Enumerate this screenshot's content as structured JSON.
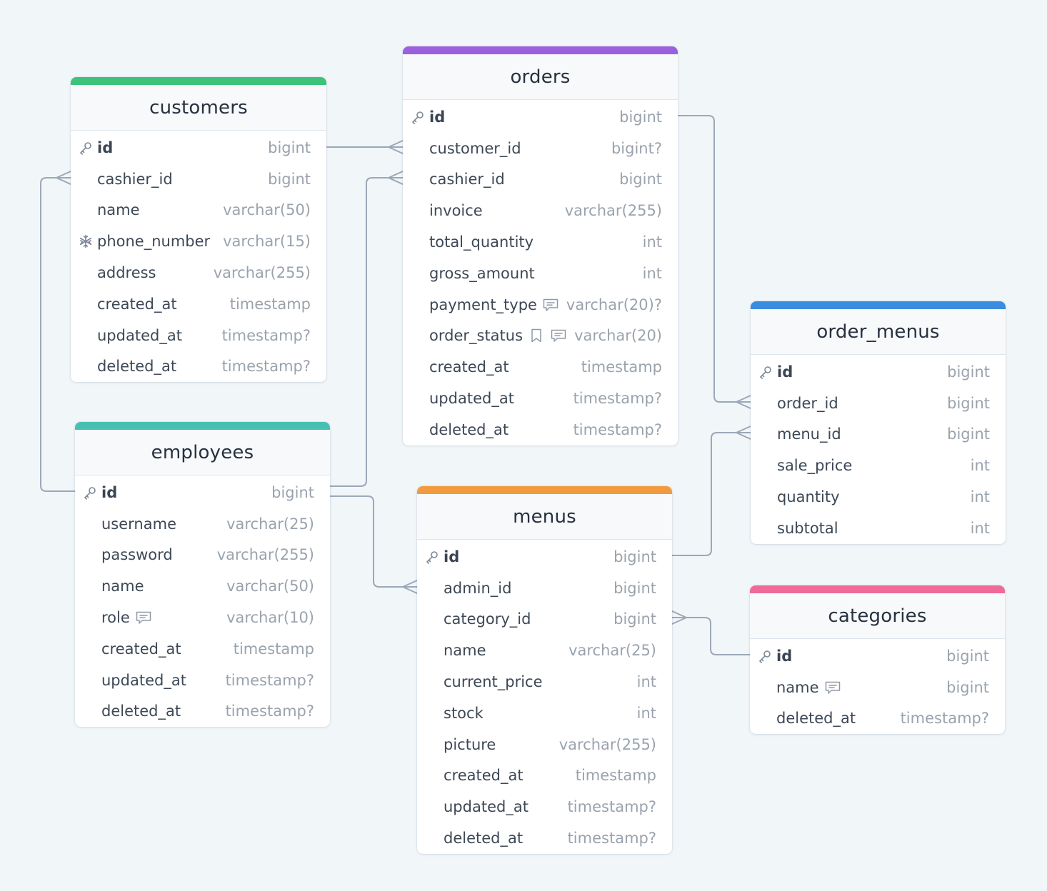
{
  "colors": {
    "background": "#f1f6f9",
    "connector": "#9ba8b8",
    "customers": "#3cc27a",
    "orders": "#9a60dd",
    "employees": "#48bfb3",
    "menus": "#f39a40",
    "order_menus": "#3a8ce0",
    "categories": "#ef6a96"
  },
  "tables": {
    "customers": {
      "title": "customers",
      "fields": [
        {
          "name": "id",
          "type": "bigint",
          "icon": "key-icon",
          "pk": true
        },
        {
          "name": "cashier_id",
          "type": "bigint"
        },
        {
          "name": "name",
          "type": "varchar(50)"
        },
        {
          "name": "phone_number",
          "type": "varchar(15)",
          "icon": "snowflake-icon"
        },
        {
          "name": "address",
          "type": "varchar(255)"
        },
        {
          "name": "created_at",
          "type": "timestamp"
        },
        {
          "name": "updated_at",
          "type": "timestamp?"
        },
        {
          "name": "deleted_at",
          "type": "timestamp?"
        }
      ]
    },
    "orders": {
      "title": "orders",
      "fields": [
        {
          "name": "id",
          "type": "bigint",
          "icon": "key-icon",
          "pk": true
        },
        {
          "name": "customer_id",
          "type": "bigint?"
        },
        {
          "name": "cashier_id",
          "type": "bigint"
        },
        {
          "name": "invoice",
          "type": "varchar(255)"
        },
        {
          "name": "total_quantity",
          "type": "int"
        },
        {
          "name": "gross_amount",
          "type": "int"
        },
        {
          "name": "payment_type",
          "type": "varchar(20)?",
          "notes": [
            "comment-icon"
          ]
        },
        {
          "name": "order_status",
          "type": "varchar(20)",
          "notes": [
            "bookmark-icon",
            "comment-icon"
          ]
        },
        {
          "name": "created_at",
          "type": "timestamp"
        },
        {
          "name": "updated_at",
          "type": "timestamp?"
        },
        {
          "name": "deleted_at",
          "type": "timestamp?"
        }
      ]
    },
    "employees": {
      "title": "employees",
      "fields": [
        {
          "name": "id",
          "type": "bigint",
          "icon": "key-icon",
          "pk": true
        },
        {
          "name": "username",
          "type": "varchar(25)"
        },
        {
          "name": "password",
          "type": "varchar(255)"
        },
        {
          "name": "name",
          "type": "varchar(50)"
        },
        {
          "name": "role",
          "type": "varchar(10)",
          "notes": [
            "comment-icon"
          ]
        },
        {
          "name": "created_at",
          "type": "timestamp"
        },
        {
          "name": "updated_at",
          "type": "timestamp?"
        },
        {
          "name": "deleted_at",
          "type": "timestamp?"
        }
      ]
    },
    "menus": {
      "title": "menus",
      "fields": [
        {
          "name": "id",
          "type": "bigint",
          "icon": "key-icon",
          "pk": true
        },
        {
          "name": "admin_id",
          "type": "bigint"
        },
        {
          "name": "category_id",
          "type": "bigint"
        },
        {
          "name": "name",
          "type": "varchar(25)"
        },
        {
          "name": "current_price",
          "type": "int"
        },
        {
          "name": "stock",
          "type": "int"
        },
        {
          "name": "picture",
          "type": "varchar(255)"
        },
        {
          "name": "created_at",
          "type": "timestamp"
        },
        {
          "name": "updated_at",
          "type": "timestamp?"
        },
        {
          "name": "deleted_at",
          "type": "timestamp?"
        }
      ]
    },
    "order_menus": {
      "title": "order_menus",
      "fields": [
        {
          "name": "id",
          "type": "bigint",
          "icon": "key-icon",
          "pk": true
        },
        {
          "name": "order_id",
          "type": "bigint"
        },
        {
          "name": "menu_id",
          "type": "bigint"
        },
        {
          "name": "sale_price",
          "type": "int"
        },
        {
          "name": "quantity",
          "type": "int"
        },
        {
          "name": "subtotal",
          "type": "int"
        }
      ]
    },
    "categories": {
      "title": "categories",
      "fields": [
        {
          "name": "id",
          "type": "bigint",
          "icon": "key-icon",
          "pk": true
        },
        {
          "name": "name",
          "type": "bigint",
          "notes": [
            "comment-icon"
          ]
        },
        {
          "name": "deleted_at",
          "type": "timestamp?"
        }
      ]
    }
  },
  "relations": [
    {
      "from": "customers.id",
      "to": "orders.customer_id",
      "kind": "one-to-many"
    },
    {
      "from": "employees.id",
      "to": "customers.cashier_id",
      "kind": "one-to-many"
    },
    {
      "from": "employees.id",
      "to": "orders.cashier_id",
      "kind": "one-to-many"
    },
    {
      "from": "employees.id",
      "to": "menus.admin_id",
      "kind": "one-to-many"
    },
    {
      "from": "orders.id",
      "to": "order_menus.order_id",
      "kind": "one-to-many"
    },
    {
      "from": "menus.id",
      "to": "order_menus.menu_id",
      "kind": "one-to-many"
    },
    {
      "from": "categories.id",
      "to": "menus.category_id",
      "kind": "one-to-many"
    }
  ]
}
